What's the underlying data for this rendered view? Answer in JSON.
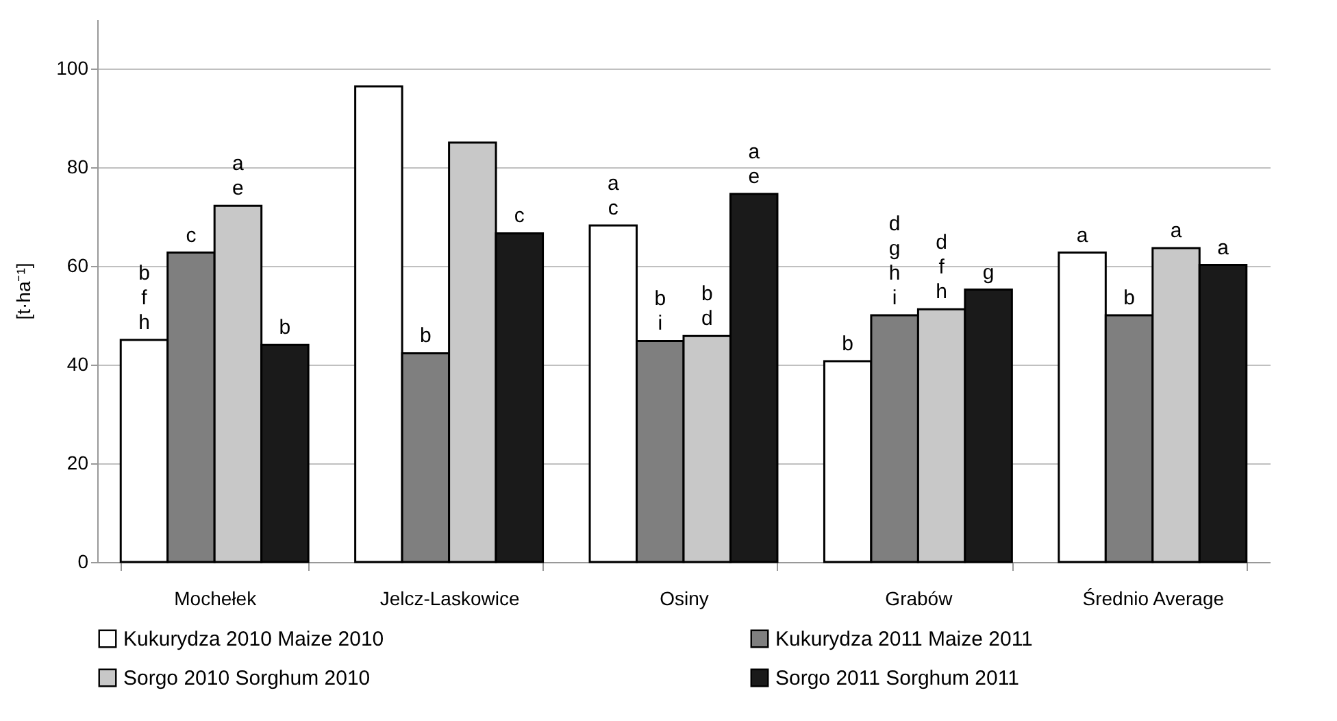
{
  "chart_data": {
    "type": "bar",
    "ylabel": "[t·ha⁻¹]",
    "categories": [
      "Mochełek",
      "Jelcz-Laskowice",
      "Osiny",
      "Grabów",
      "Średnio  Average"
    ],
    "series": [
      {
        "name": "Kukurydza 2010  Maize 2010",
        "color": "#ffffff",
        "values": [
          45,
          96.4,
          68.2,
          40.7,
          62.7
        ],
        "value_labels": [
          "b\nf\nh",
          null,
          "a\nc",
          "b",
          "a"
        ]
      },
      {
        "name": "Kukurydza 2011  Maize 2011",
        "color": "#7f7f7f",
        "values": [
          62.7,
          42.3,
          44.8,
          50,
          50
        ],
        "value_labels": [
          "c",
          "b",
          "b\ni",
          "d\ng\nh\ni",
          "b"
        ]
      },
      {
        "name": "Sorgo 2010  Sorghum 2010",
        "color": "#c8c8c8",
        "values": [
          72.2,
          85,
          45.8,
          51.2,
          63.6
        ],
        "value_labels": [
          "a\ne",
          null,
          "b\nd",
          "d\nf\nh",
          "a"
        ]
      },
      {
        "name": "Sorgo 2011  Sorghum 2011",
        "color": "#1a1a1a",
        "values": [
          44,
          66.6,
          74.6,
          55.2,
          60.2
        ],
        "value_labels": [
          "b",
          "c",
          "a\ne",
          "g",
          "a"
        ]
      }
    ],
    "ylim": [
      0,
      110
    ],
    "yticks": [
      0,
      20,
      40,
      60,
      80,
      100
    ],
    "grid": "y",
    "legend": "bottom"
  }
}
